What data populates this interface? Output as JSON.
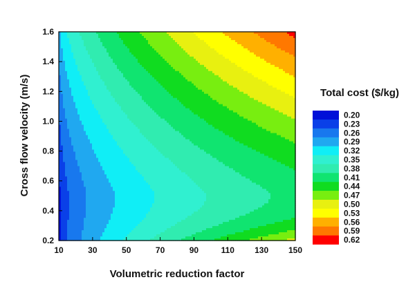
{
  "chart_data": {
    "type": "heatmap",
    "subtype": "filled-contour",
    "xlabel": "Volumetric reduction factor",
    "ylabel": "Cross flow velocity (m/s)",
    "xlim": [
      10,
      150
    ],
    "ylim": [
      0.2,
      1.6
    ],
    "x_ticks": [
      10,
      30,
      50,
      70,
      90,
      110,
      130,
      150
    ],
    "y_ticks": [
      0.2,
      0.4,
      0.6,
      0.8,
      1.0,
      1.2,
      1.4,
      1.6
    ],
    "y_tick_labels": [
      "0.2",
      "0.4",
      "0.6",
      "0.8",
      "1.0",
      "1.2",
      "1.4",
      "1.6"
    ],
    "grid": false,
    "legend": {
      "title": "Total cost ($/kg)",
      "placement": "right",
      "levels": [
        "0.20",
        "0.23",
        "0.26",
        "0.29",
        "0.32",
        "0.35",
        "0.38",
        "0.41",
        "0.44",
        "0.47",
        "0.50",
        "0.53",
        "0.56",
        "0.59",
        "0.62"
      ],
      "colors": [
        "#0010d8",
        "#0a40e8",
        "#1878ee",
        "#20a8f0",
        "#10eef6",
        "#30f0d0",
        "#30ecb0",
        "#10e470",
        "#10dc20",
        "#78ee10",
        "#e8f010",
        "#ffff00",
        "#ffb000",
        "#ff7800",
        "#ff0000"
      ]
    },
    "approx_cost_samples": {
      "note_points": [
        {
          "x": 10,
          "y": 0.5,
          "z": 0.21
        },
        {
          "x": 30,
          "y": 0.5,
          "z": 0.31
        },
        {
          "x": 90,
          "y": 0.5,
          "z": 0.38
        },
        {
          "x": 150,
          "y": 0.5,
          "z": 0.41
        },
        {
          "x": 10,
          "y": 1.6,
          "z": 0.32
        },
        {
          "x": 150,
          "y": 1.6,
          "z": 0.6
        },
        {
          "x": 150,
          "y": 0.2,
          "z": 0.53
        }
      ]
    }
  }
}
